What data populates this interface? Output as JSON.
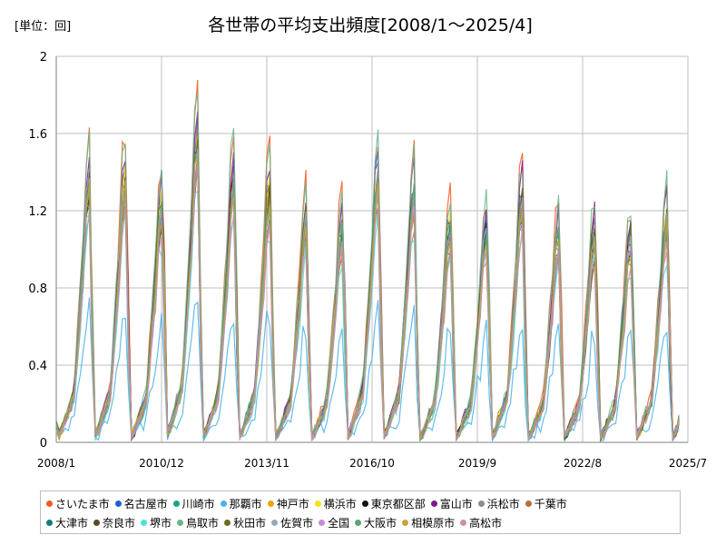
{
  "chart_data": {
    "type": "line",
    "title": "各世帯の平均支出頻度[2008/1～2025/4]",
    "unit_label": "[単位：回]",
    "ylim": [
      0,
      2
    ],
    "yticks": [
      "0",
      "0.4",
      "0.8",
      "1.2",
      "1.6",
      "2"
    ],
    "xlim": [
      "2008/1",
      "2025/7"
    ],
    "xticks": [
      "2008/1",
      "2010/12",
      "2013/11",
      "2016/10",
      "2019/9",
      "2022/8",
      "2025/7"
    ],
    "grid": true,
    "legend_position": "bottom",
    "peak_month": 12,
    "annual_peak_values": [
      1.65,
      1.66,
      1.48,
      1.91,
      1.65,
      1.58,
      1.39,
      1.34,
      1.68,
      1.58,
      1.36,
      1.34,
      1.53,
      1.3,
      1.3,
      1.28,
      1.41
    ],
    "series": [
      {
        "name": "さいたま市",
        "color": "#f15a22",
        "peak_scale": 0.96
      },
      {
        "name": "名古屋市",
        "color": "#1f5fd6",
        "peak_scale": 0.86
      },
      {
        "name": "川崎市",
        "color": "#1aa587",
        "peak_scale": 0.78
      },
      {
        "name": "那覇市",
        "color": "#47b3e8",
        "peak_scale": 0.42
      },
      {
        "name": "神戸市",
        "color": "#f0a30a",
        "peak_scale": 0.82
      },
      {
        "name": "横浜市",
        "color": "#f5e31a",
        "peak_scale": 0.84
      },
      {
        "name": "東京都区部",
        "color": "#111111",
        "peak_scale": 0.8
      },
      {
        "name": "富山市",
        "color": "#7a1b8a",
        "peak_scale": 0.9
      },
      {
        "name": "浜松市",
        "color": "#8c8c8c",
        "peak_scale": 0.74
      },
      {
        "name": "千葉市",
        "color": "#b0713a",
        "peak_scale": 0.77
      },
      {
        "name": "大津市",
        "color": "#137a7f",
        "peak_scale": 0.79
      },
      {
        "name": "奈良市",
        "color": "#5b4a25",
        "peak_scale": 0.75
      },
      {
        "name": "堺市",
        "color": "#4fe0d0",
        "peak_scale": 0.7
      },
      {
        "name": "鳥取市",
        "color": "#6bb58a",
        "peak_scale": 0.95
      },
      {
        "name": "秋田市",
        "color": "#6b6b1e",
        "peak_scale": 0.83
      },
      {
        "name": "佐賀市",
        "color": "#9aa5bf",
        "peak_scale": 0.81
      },
      {
        "name": "全国",
        "color": "#c88ad6",
        "peak_scale": 0.76
      },
      {
        "name": "大阪市",
        "color": "#54a86e",
        "peak_scale": 0.8
      },
      {
        "name": "相模原市",
        "color": "#c9a33a",
        "peak_scale": 0.78
      },
      {
        "name": "高松市",
        "color": "#c890a8",
        "peak_scale": 0.73
      }
    ]
  }
}
